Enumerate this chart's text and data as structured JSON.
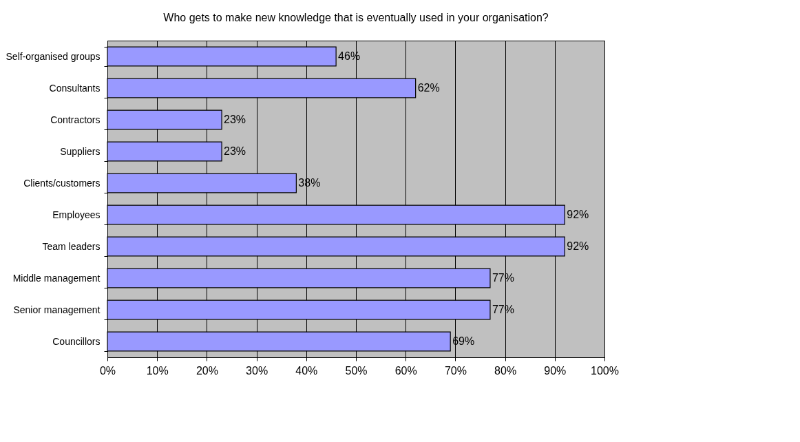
{
  "chart_data": {
    "type": "bar",
    "orientation": "horizontal",
    "title": "Who gets to make new knowledge that is eventually used in your organisation?",
    "categories": [
      "Self-organised groups",
      "Consultants",
      "Contractors",
      "Suppliers",
      "Clients/customers",
      "Employees",
      "Team leaders",
      "Middle management",
      "Senior management",
      "Councillors"
    ],
    "values": [
      46,
      62,
      23,
      23,
      38,
      92,
      92,
      77,
      77,
      69
    ],
    "value_labels": [
      "46%",
      "62%",
      "23%",
      "23%",
      "38%",
      "92%",
      "92%",
      "77%",
      "77%",
      "69%"
    ],
    "color": "#9999ff",
    "xlim": [
      0,
      100
    ],
    "xticks": [
      {
        "value": 0,
        "label": "0%"
      },
      {
        "value": 10,
        "label": "10%"
      },
      {
        "value": 20,
        "label": "20%"
      },
      {
        "value": 30,
        "label": "30%"
      },
      {
        "value": 40,
        "label": "40%"
      },
      {
        "value": 50,
        "label": "50%"
      },
      {
        "value": 60,
        "label": "60%"
      },
      {
        "value": 70,
        "label": "70%"
      },
      {
        "value": 80,
        "label": "80%"
      },
      {
        "value": 90,
        "label": "90%"
      },
      {
        "value": 100,
        "label": "100%"
      }
    ],
    "grid": "x"
  }
}
